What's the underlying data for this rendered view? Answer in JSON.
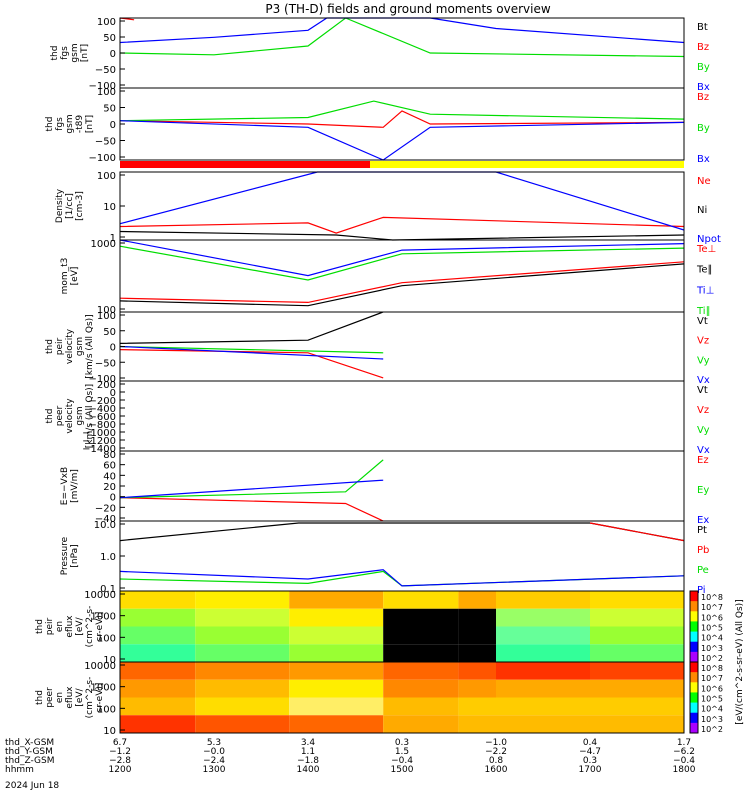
{
  "title": "P3 (TH-D) fields and ground moments overview",
  "colors": {
    "black": "#000000",
    "red": "#ff0000",
    "green": "#00dd00",
    "blue": "#0000ff",
    "yellow": "#ffff00"
  },
  "chart_data": [
    {
      "type": "line",
      "panel": "fgs_gsm",
      "ylabel": [
        "thd",
        "fgs",
        "gsm",
        "[nT]"
      ],
      "yticks": [
        "100",
        "50",
        "0",
        "−50",
        "−100"
      ],
      "ylim": [
        -100,
        100
      ],
      "series": [
        {
          "name": "Bt",
          "color": "black",
          "values": []
        },
        {
          "name": "Bz",
          "color": "red",
          "values": [
            [
              1200,
              100
            ],
            [
              1215,
              95
            ]
          ]
        },
        {
          "name": "By",
          "color": "green",
          "values": [
            [
              1200,
              0
            ],
            [
              1300,
              -5
            ],
            [
              1400,
              20
            ],
            [
              1440,
              100
            ],
            [
              1530,
              0
            ],
            [
              1800,
              -10
            ]
          ]
        },
        {
          "name": "Bx",
          "color": "blue",
          "values": [
            [
              1200,
              30
            ],
            [
              1300,
              45
            ],
            [
              1400,
              65
            ],
            [
              1420,
              100
            ],
            [
              1530,
              100
            ],
            [
              1600,
              70
            ],
            [
              1800,
              30
            ]
          ]
        }
      ]
    },
    {
      "type": "line",
      "panel": "fgs_gsm_t89",
      "ylabel": [
        "thd",
        "fgs",
        "gsm",
        "-t89",
        "[nT]"
      ],
      "yticks": [
        "100",
        "50",
        "0",
        "−50",
        "−100"
      ],
      "ylim": [
        -120,
        100
      ],
      "series": [
        {
          "name": "Bz",
          "color": "red",
          "values": [
            [
              1200,
              0
            ],
            [
              1400,
              -10
            ],
            [
              1480,
              -20
            ],
            [
              1500,
              30
            ],
            [
              1530,
              -10
            ],
            [
              1800,
              -5
            ]
          ]
        },
        {
          "name": "By",
          "color": "green",
          "values": [
            [
              1200,
              0
            ],
            [
              1400,
              10
            ],
            [
              1470,
              60
            ],
            [
              1530,
              20
            ],
            [
              1800,
              5
            ]
          ]
        },
        {
          "name": "Bx",
          "color": "blue",
          "values": [
            [
              1200,
              0
            ],
            [
              1400,
              -20
            ],
            [
              1480,
              -120
            ],
            [
              1530,
              -20
            ],
            [
              1800,
              -5
            ]
          ]
        }
      ]
    },
    {
      "type": "line",
      "panel": "density",
      "ylabel": [
        "Density",
        "[1/cc]",
        "[cm-3]"
      ],
      "yticks": [
        "100",
        "10",
        "1"
      ],
      "log": true,
      "ylim": [
        0.4,
        100
      ],
      "series": [
        {
          "name": "Ne",
          "color": "red",
          "values": [
            [
              1200,
              1.2
            ],
            [
              1400,
              1.6
            ],
            [
              1430,
              0.7
            ],
            [
              1480,
              2.5
            ],
            [
              1800,
              1.2
            ]
          ]
        },
        {
          "name": "Ni",
          "color": "black",
          "values": [
            [
              1200,
              0.8
            ],
            [
              1430,
              0.6
            ],
            [
              1490,
              0.4
            ],
            [
              1800,
              0.6
            ]
          ]
        },
        {
          "name": "Npot",
          "color": "blue",
          "values": [
            [
              1200,
              1.5
            ],
            [
              1410,
              100
            ],
            [
              1600,
              100
            ],
            [
              1800,
              0.9
            ]
          ]
        }
      ]
    },
    {
      "type": "line",
      "panel": "mom_t3",
      "ylabel": [
        "mom_t3",
        "[eV]"
      ],
      "yticks": [
        "1000",
        "100"
      ],
      "log": true,
      "ylim": [
        80,
        3000
      ],
      "series": [
        {
          "name": "Te⊥",
          "color": "red",
          "values": [
            [
              1200,
              160
            ],
            [
              1400,
              130
            ],
            [
              1500,
              350
            ],
            [
              1800,
              1000
            ]
          ]
        },
        {
          "name": "Te∥",
          "color": "black",
          "values": [
            [
              1200,
              140
            ],
            [
              1400,
              110
            ],
            [
              1500,
              300
            ],
            [
              1800,
              900
            ]
          ]
        },
        {
          "name": "Ti⊥",
          "color": "blue",
          "values": [
            [
              1200,
              3000
            ],
            [
              1400,
              500
            ],
            [
              1500,
              1800
            ],
            [
              1800,
              2500
            ]
          ]
        },
        {
          "name": "Ti∥",
          "color": "green",
          "values": [
            [
              1200,
              2200
            ],
            [
              1400,
              400
            ],
            [
              1500,
              1500
            ],
            [
              1800,
              2000
            ]
          ]
        }
      ]
    },
    {
      "type": "line",
      "panel": "peir_velocity",
      "ylabel": [
        "thd",
        "peir",
        "velocity",
        "gsm",
        "[km/s (All Qs)]"
      ],
      "yticks": [
        "100",
        "50",
        "0",
        "−50",
        "−100"
      ],
      "ylim": [
        -110,
        110
      ],
      "series": [
        {
          "name": "Vt",
          "color": "black",
          "values": [
            [
              1200,
              10
            ],
            [
              1400,
              20
            ],
            [
              1480,
              110
            ]
          ]
        },
        {
          "name": "Vz",
          "color": "red",
          "values": [
            [
              1200,
              -10
            ],
            [
              1400,
              -20
            ],
            [
              1480,
              -100
            ]
          ]
        },
        {
          "name": "Vy",
          "color": "green",
          "values": [
            [
              1200,
              0
            ],
            [
              1480,
              -20
            ]
          ]
        },
        {
          "name": "Vx",
          "color": "blue",
          "values": [
            [
              1200,
              0
            ],
            [
              1480,
              -40
            ]
          ]
        }
      ]
    },
    {
      "type": "line",
      "panel": "peer_velocity",
      "ylabel": [
        "thd",
        "peer",
        "velocity",
        "gsm",
        "[km/s (All Qs)]"
      ],
      "yticks": [
        "200",
        "0",
        "−200",
        "−400",
        "−600",
        "−800",
        "−1000",
        "−1200",
        "−1400"
      ],
      "ylim": [
        -1400,
        200
      ],
      "series": [
        {
          "name": "Vt",
          "color": "black",
          "values": []
        },
        {
          "name": "Vz",
          "color": "red",
          "values": []
        },
        {
          "name": "Vy",
          "color": "green",
          "values": []
        },
        {
          "name": "Vx",
          "color": "blue",
          "values": []
        }
      ]
    },
    {
      "type": "line",
      "panel": "E_VxB",
      "ylabel": [
        "E=−VxB",
        "[mV/m]"
      ],
      "yticks": [
        "80",
        "60",
        "40",
        "20",
        "0",
        "−20",
        "−40"
      ],
      "ylim": [
        -40,
        80
      ],
      "series": [
        {
          "name": "Ez",
          "color": "red",
          "values": [
            [
              1200,
              0
            ],
            [
              1440,
              -10
            ],
            [
              1480,
              -40
            ]
          ]
        },
        {
          "name": "Ey",
          "color": "green",
          "values": [
            [
              1200,
              0
            ],
            [
              1440,
              10
            ],
            [
              1480,
              65
            ]
          ]
        },
        {
          "name": "Ex",
          "color": "blue",
          "values": [
            [
              1200,
              0
            ],
            [
              1480,
              30
            ]
          ]
        }
      ]
    },
    {
      "type": "line",
      "panel": "pressure",
      "ylabel": [
        "Pressure",
        "[nPa]"
      ],
      "yticks": [
        "10.0",
        "1.0",
        "0.1"
      ],
      "log": true,
      "ylim": [
        0.05,
        30
      ],
      "series": [
        {
          "name": "Pt",
          "color": "black",
          "values": [
            [
              1200,
              5
            ],
            [
              1390,
              25
            ],
            [
              1700,
              25
            ],
            [
              1800,
              5
            ]
          ]
        },
        {
          "name": "Pb",
          "color": "red",
          "values": [
            [
              1700,
              25
            ],
            [
              1800,
              5
            ]
          ]
        },
        {
          "name": "Pe",
          "color": "green",
          "values": [
            [
              1200,
              0.15
            ],
            [
              1400,
              0.1
            ],
            [
              1480,
              0.3
            ],
            [
              1500,
              0.08
            ],
            [
              1800,
              0.2
            ]
          ]
        },
        {
          "name": "Pi",
          "color": "blue",
          "values": [
            [
              1200,
              0.3
            ],
            [
              1400,
              0.15
            ],
            [
              1480,
              0.35
            ],
            [
              1500,
              0.08
            ],
            [
              1800,
              0.2
            ]
          ]
        }
      ]
    },
    {
      "type": "heatmap",
      "panel": "peir_en_eflux",
      "ylabel": [
        "thd",
        "peir",
        "en",
        "eflux",
        "[eV/",
        "(cm^2-s-",
        "sr-eV)]"
      ],
      "yticks": [
        "10000",
        "1000",
        "100",
        "10"
      ],
      "log": true
    },
    {
      "type": "heatmap",
      "panel": "peer_en_eflux",
      "ylabel": [
        "thd",
        "peer",
        "en",
        "eflux",
        "[eV/",
        "(cm^2-s-",
        "sr-eV)]"
      ],
      "yticks": [
        "10000",
        "1000",
        "100",
        "10"
      ],
      "log": true
    }
  ],
  "colorbar": {
    "label": "[eV/(cm^2-s-sr-eV) (All Qs)]",
    "ticks": [
      "10^8",
      "10^7",
      "10^6",
      "10^5",
      "10^4",
      "10^3",
      "10^2"
    ]
  },
  "xaxis": {
    "rows": [
      {
        "label": "thd_X-GSM",
        "values": [
          "6.7",
          "5.3",
          "3.4",
          "0.3",
          "−1.0",
          "0.4",
          "1.7"
        ]
      },
      {
        "label": "thd_Y-GSM",
        "values": [
          "−1.2",
          "−0.0",
          "1.1",
          "1.5",
          "−2.2",
          "−4.7",
          "−6.2"
        ]
      },
      {
        "label": "thd_Z-GSM",
        "values": [
          "−2.8",
          "−2.4",
          "−1.8",
          "−0.4",
          "0.8",
          "0.3",
          "−0.4"
        ]
      },
      {
        "label": "hhmm",
        "values": [
          "1200",
          "1300",
          "1400",
          "1500",
          "1600",
          "1700",
          "1800"
        ]
      }
    ],
    "date": "2024 Jun 18"
  }
}
